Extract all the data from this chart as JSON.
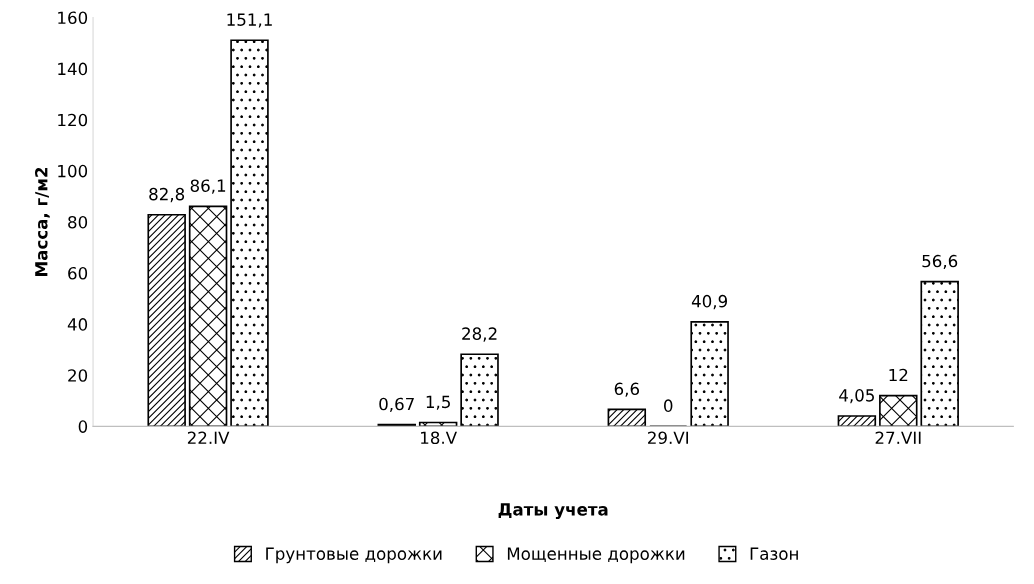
{
  "chart_data": {
    "type": "bar",
    "xlabel": "Даты учета",
    "ylabel": "Масса, г/м2",
    "categories": [
      "22.IV",
      "18.V",
      "29.VI",
      "27.VII"
    ],
    "series": [
      {
        "name": "Грунтовые дорожки",
        "color": "#000000",
        "values": [
          82.8,
          0.67,
          6.6,
          4.05
        ],
        "value_labels": [
          "82,8",
          "0,67",
          "6,6",
          "4,05"
        ]
      },
      {
        "name": "Мощенные дорожки",
        "color": "#000000",
        "values": [
          86.1,
          1.5,
          0,
          12
        ],
        "value_labels": [
          "86,1",
          "1,5",
          "0",
          "12"
        ]
      },
      {
        "name": "Газон",
        "color": "#000000",
        "values": [
          151.1,
          28.2,
          40.9,
          56.6
        ],
        "value_labels": [
          "151,1",
          "28,2",
          "40,9",
          "56,6"
        ]
      }
    ],
    "ylim": [
      0,
      160
    ],
    "yticks": [
      0,
      20,
      40,
      60,
      80,
      100,
      120,
      140,
      160
    ],
    "grid": false,
    "legend": "bottom"
  }
}
